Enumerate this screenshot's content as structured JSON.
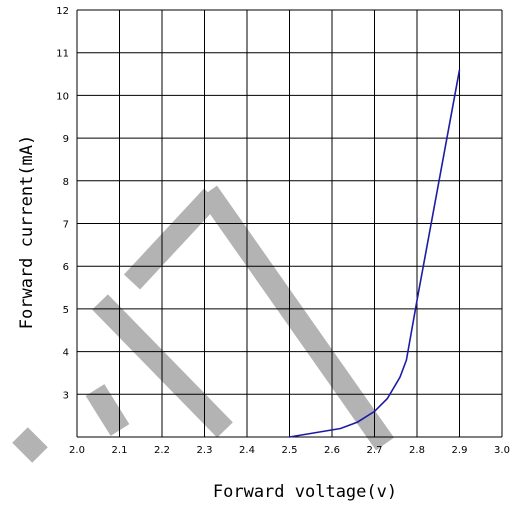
{
  "chart_data": {
    "type": "line",
    "xlabel": "Forward voltage(v)",
    "ylabel": "Forward current(mA)",
    "xlim": [
      2.0,
      3.0
    ],
    "ylim": [
      2,
      12
    ],
    "x_ticks": [
      "2.0",
      "2.1",
      "2.2",
      "2.3",
      "2.4",
      "2.5",
      "2.6",
      "2.7",
      "2.8",
      "2.9",
      "3.0"
    ],
    "y_ticks": [
      "3",
      "4",
      "5",
      "6",
      "7",
      "8",
      "9",
      "10",
      "11",
      "12"
    ],
    "grid": true,
    "series": [
      {
        "x": [
          2.5,
          2.62,
          2.66,
          2.7,
          2.73,
          2.76,
          2.775,
          2.8,
          2.9
        ],
        "y": [
          2.0,
          2.2,
          2.35,
          2.6,
          2.9,
          3.4,
          3.8,
          5.2,
          10.6
        ]
      }
    ],
    "colors": {
      "line": "#1c1ca6",
      "grid": "#000000",
      "watermark": "#b3b3b3"
    }
  }
}
